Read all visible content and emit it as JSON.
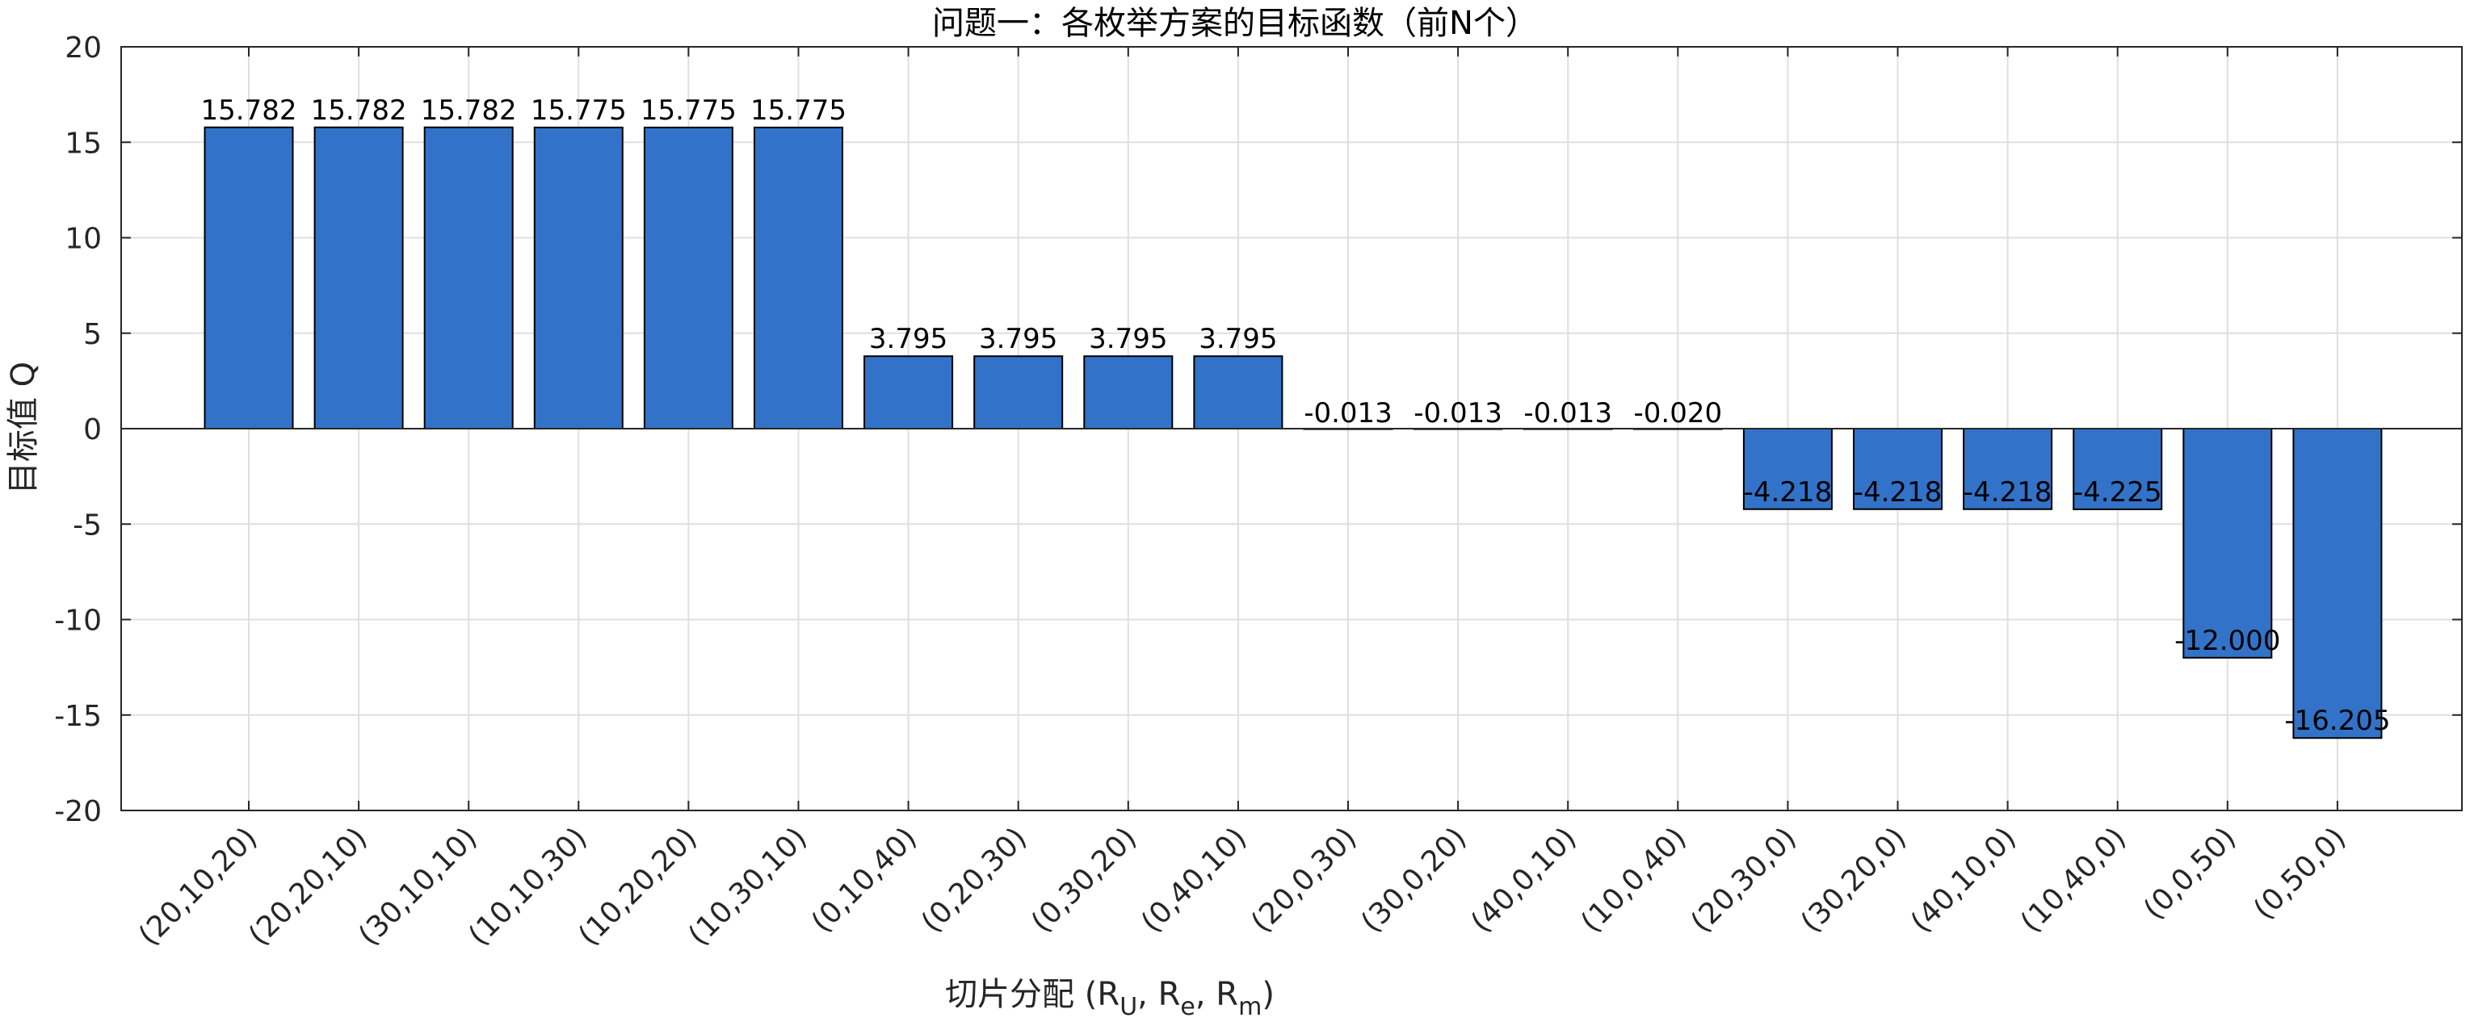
{
  "chart_data": {
    "type": "bar",
    "title": "问题一：各枚举方案的目标函数（前N个）",
    "xlabel_main": "切片分配 (R",
    "xlabel_sub1": "U",
    "xlabel_sep1": ", R",
    "xlabel_sub2": "e",
    "xlabel_sep2": ", R",
    "xlabel_sub3": "m",
    "xlabel_end": ")",
    "ylabel": "目标值 Q",
    "ylim": [
      -20,
      20
    ],
    "yticks": [
      -20,
      -15,
      -10,
      -5,
      0,
      5,
      10,
      15,
      20
    ],
    "grid": true,
    "bar_color": "#3273C9",
    "categories": [
      "(20,10,20)",
      "(20,20,10)",
      "(30,10,10)",
      "(10,10,30)",
      "(10,20,20)",
      "(10,30,10)",
      "(0,10,40)",
      "(0,20,30)",
      "(0,30,20)",
      "(0,40,10)",
      "(20,0,30)",
      "(30,0,20)",
      "(40,0,10)",
      "(10,0,40)",
      "(20,30,0)",
      "(30,20,0)",
      "(40,10,0)",
      "(10,40,0)",
      "(0,0,50)",
      "(0,50,0)"
    ],
    "values": [
      15.782,
      15.782,
      15.782,
      15.775,
      15.775,
      15.775,
      3.795,
      3.795,
      3.795,
      3.795,
      -0.013,
      -0.013,
      -0.013,
      -0.02,
      -4.218,
      -4.218,
      -4.218,
      -4.225,
      -12.0,
      -16.205
    ],
    "value_labels": [
      "15.782",
      "15.782",
      "15.782",
      "15.775",
      "15.775",
      "15.775",
      "3.795",
      "3.795",
      "3.795",
      "3.795",
      "-0.013",
      "-0.013",
      "-0.013",
      "-0.020",
      "-4.218",
      "-4.218",
      "-4.218",
      "-4.225",
      "-12.000",
      "-16.205"
    ]
  }
}
